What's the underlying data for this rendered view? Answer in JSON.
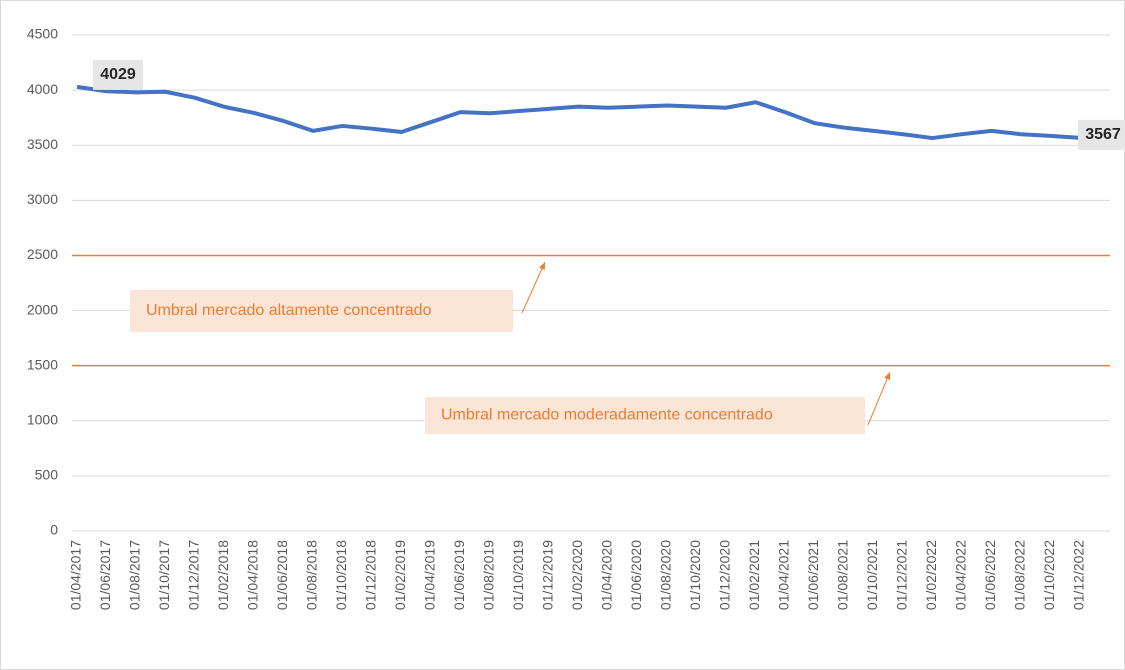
{
  "chart_data": {
    "type": "line",
    "categories": [
      "01/04/2017",
      "01/06/2017",
      "01/08/2017",
      "01/10/2017",
      "01/12/2017",
      "01/02/2018",
      "01/04/2018",
      "01/06/2018",
      "01/08/2018",
      "01/10/2018",
      "01/12/2018",
      "01/02/2019",
      "01/04/2019",
      "01/06/2019",
      "01/08/2019",
      "01/10/2019",
      "01/12/2019",
      "01/02/2020",
      "01/04/2020",
      "01/06/2020",
      "01/08/2020",
      "01/10/2020",
      "01/12/2020",
      "01/02/2021",
      "01/04/2021",
      "01/06/2021",
      "01/08/2021",
      "01/10/2021",
      "01/12/2021",
      "01/02/2022",
      "01/04/2022",
      "01/06/2022",
      "01/08/2022",
      "01/10/2022",
      "01/12/2022"
    ],
    "series": [
      {
        "color": "#4472c4",
        "values": [
          4029,
          3990,
          3980,
          3985,
          3930,
          3848,
          3793,
          3720,
          3630,
          3675,
          3650,
          3620,
          3710,
          3800,
          3790,
          3810,
          3830,
          3850,
          3840,
          3850,
          3860,
          3850,
          3840,
          3890,
          3800,
          3700,
          3660,
          3630,
          3600,
          3565,
          3600,
          3630,
          3600,
          3585,
          3567
        ]
      }
    ],
    "labeled_points": [
      0,
      34
    ],
    "reference_lines": [
      {
        "value": 2500,
        "label": "Umbral mercado altamente concentrado"
      },
      {
        "value": 1500,
        "label": "Umbral mercado moderadamente concentrado"
      }
    ],
    "reference_color": "#ed7d31",
    "ylim": [
      0,
      4500
    ],
    "yticks": [
      0,
      500,
      1000,
      1500,
      2000,
      2500,
      3000,
      3500,
      4000,
      4500
    ],
    "grid": true
  }
}
